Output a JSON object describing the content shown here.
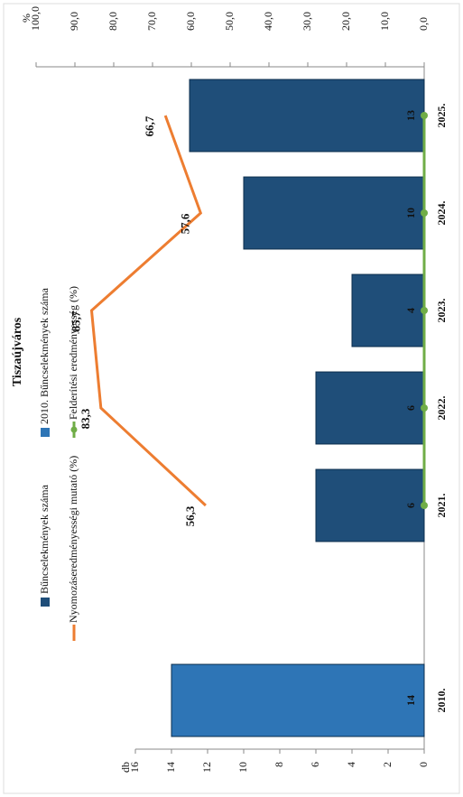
{
  "chart_data": {
    "type": "bar",
    "title": "Tiszaújváros",
    "y_label": "db",
    "y2_label": "%",
    "categories": [
      "2010.",
      null,
      "2021.",
      "2022.",
      "2023.",
      "2024.",
      "2025."
    ],
    "ylim": [
      0,
      16
    ],
    "yticks": [
      0,
      2,
      4,
      6,
      8,
      10,
      12,
      14,
      16
    ],
    "y2lim": [
      0,
      100
    ],
    "y2ticks": [
      {
        "value": 0,
        "label": "0,0"
      },
      {
        "value": 10,
        "label": "10,0"
      },
      {
        "value": 20,
        "label": "20,0"
      },
      {
        "value": 30,
        "label": "30,0"
      },
      {
        "value": 40,
        "label": "40,0"
      },
      {
        "value": 50,
        "label": "50,0"
      },
      {
        "value": 60,
        "label": "60,0"
      },
      {
        "value": 70,
        "label": "70,0"
      },
      {
        "value": 80,
        "label": "80,0"
      },
      {
        "value": 90,
        "label": "90,0"
      },
      {
        "value": 100,
        "label": "100,0"
      }
    ],
    "series": [
      {
        "name": "Bűncselekmények száma",
        "type": "bar",
        "color": "#1f4e79",
        "values": [
          null,
          null,
          6,
          6,
          4,
          10,
          13
        ]
      },
      {
        "name": "2010. Bűncselekmények száma",
        "type": "bar",
        "color": "#2e75b6",
        "values": [
          14,
          null,
          null,
          null,
          null,
          null,
          null
        ]
      },
      {
        "name": "Nyomozáseredményességi mutató (%)",
        "type": "line",
        "axis": "y2",
        "color": "#ed7d31",
        "values": [
          null,
          null,
          56.3,
          83.3,
          85.7,
          57.6,
          66.7
        ],
        "value_labels": [
          null,
          null,
          "56,3",
          "83,3",
          "85,7",
          "57,6",
          "66,7"
        ]
      },
      {
        "name": "Felderítési eredményesség (%)",
        "type": "line",
        "axis": "y2",
        "color": "#70ad47",
        "values": [
          null,
          null,
          0,
          0,
          0,
          0,
          0
        ]
      }
    ]
  }
}
